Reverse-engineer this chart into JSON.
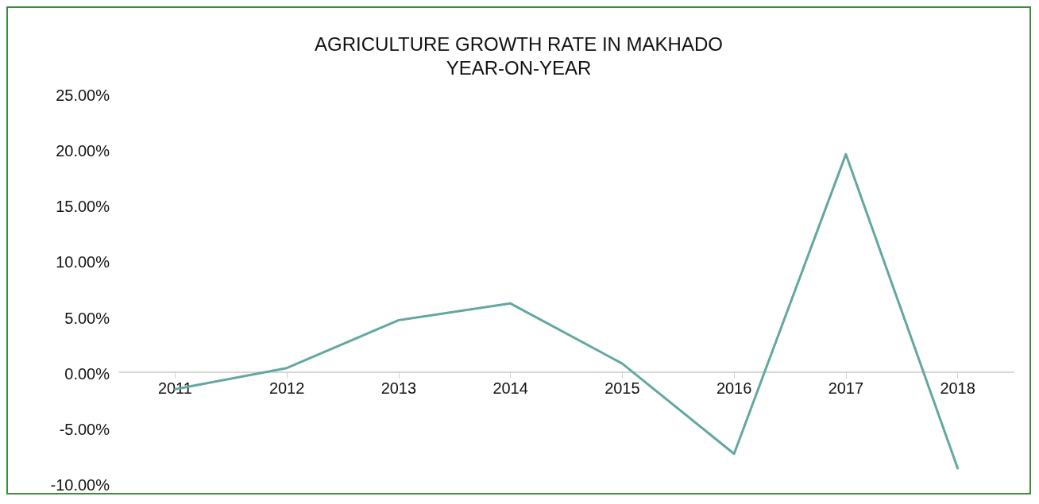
{
  "chart_data": {
    "type": "line",
    "title": "AGRICULTURE GROWTH RATE IN MAKHADO",
    "subtitle": "YEAR-ON-YEAR",
    "categories": [
      "2011",
      "2012",
      "2013",
      "2014",
      "2015",
      "2016",
      "2017",
      "2018"
    ],
    "series": [
      {
        "color": "#62a8a0",
        "values": [
          -1.4,
          0.5,
          4.8,
          6.3,
          0.9,
          -7.2,
          19.7,
          -8.5
        ]
      }
    ],
    "ylim": [
      -10,
      25
    ],
    "yticks": [
      {
        "value": -10,
        "label": "-10.00%"
      },
      {
        "value": -5,
        "label": "-5.00%"
      },
      {
        "value": 0,
        "label": "0.00%"
      },
      {
        "value": 5,
        "label": "5.00%"
      },
      {
        "value": 10,
        "label": "10.00%"
      },
      {
        "value": 15,
        "label": "15.00%"
      },
      {
        "value": 20,
        "label": "20.00%"
      },
      {
        "value": 25,
        "label": "25.00%"
      }
    ],
    "marker": "none",
    "line_style": "solid"
  }
}
